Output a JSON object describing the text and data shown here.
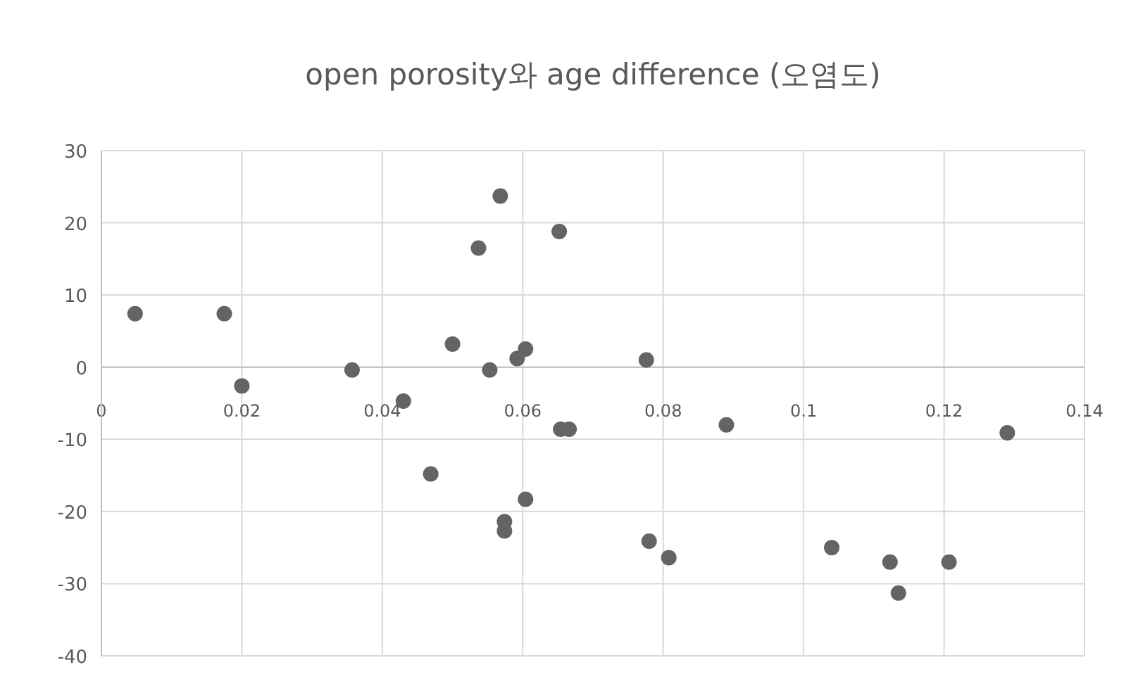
{
  "chart_data": {
    "type": "scatter",
    "title": "open porosity와 age difference (오염도)",
    "x": [
      0.0048,
      0.0175,
      0.02,
      0.0357,
      0.043,
      0.05,
      0.0537,
      0.0568,
      0.0553,
      0.0592,
      0.0604,
      0.0652,
      0.0654,
      0.0666,
      0.0469,
      0.0604,
      0.0574,
      0.0574,
      0.0776,
      0.089,
      0.078,
      0.0808,
      0.104,
      0.1123,
      0.1135,
      0.1207,
      0.129
    ],
    "values": [
      7.4,
      7.4,
      -2.6,
      -0.4,
      -4.7,
      3.2,
      16.5,
      23.7,
      -0.4,
      1.2,
      2.5,
      18.8,
      -8.6,
      -8.6,
      -14.8,
      -18.3,
      -21.4,
      -22.7,
      1.0,
      -8.0,
      -24.1,
      -26.4,
      -25.0,
      -27.0,
      -31.3,
      -27.0,
      -9.1
    ],
    "color": "#646464",
    "marker": "circle",
    "grid": true,
    "xlim": [
      0,
      0.14
    ],
    "xticks": [
      0,
      0.02,
      0.04,
      0.06,
      0.08,
      0.1,
      0.12,
      0.14
    ],
    "ylim": [
      -40,
      30
    ],
    "yticks": [
      -40,
      -30,
      -20,
      -10,
      0,
      10,
      20,
      30
    ]
  }
}
